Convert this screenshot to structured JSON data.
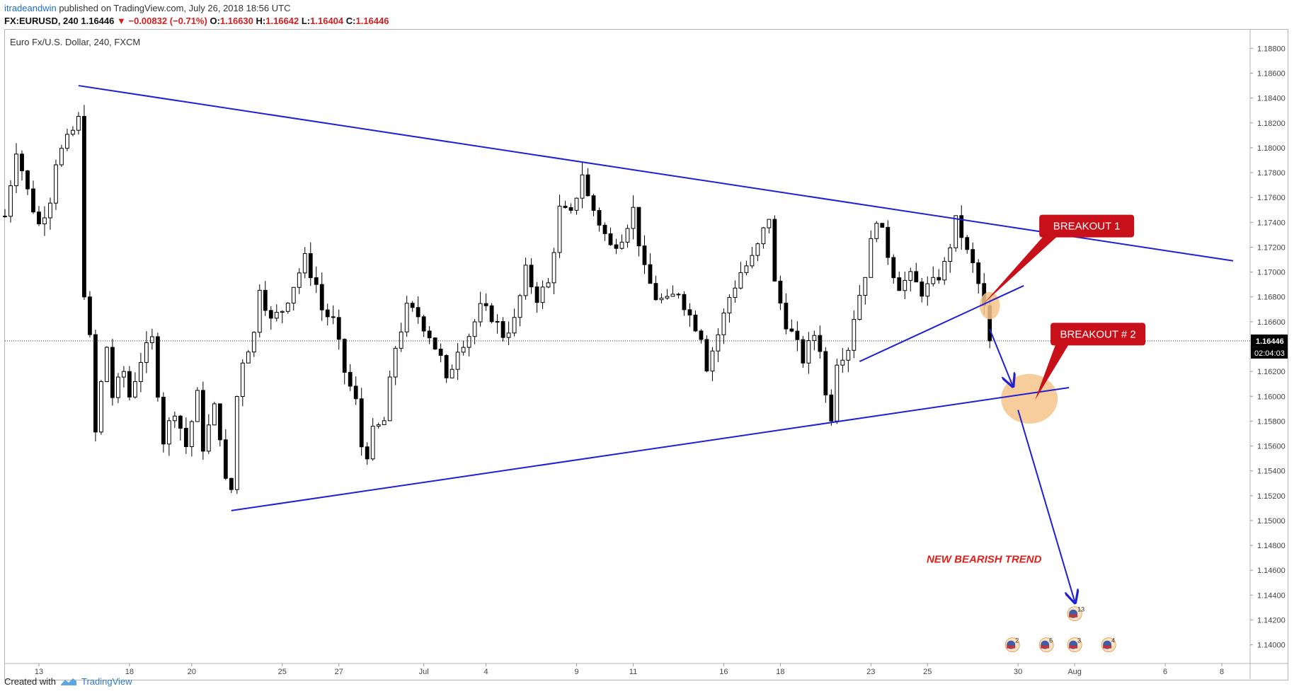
{
  "header": {
    "author": "itradeandwin",
    "published_text": " published on TradingView.com, July 26, 2018 18:56 UTC"
  },
  "quote": {
    "symbol": "FX:EURUSD, 240",
    "last": "1.16446",
    "change": "−0.00832 (−0.71%)",
    "o_label": "O:",
    "o": "1.16630",
    "h_label": "H:",
    "h": "1.16642",
    "l_label": "L:",
    "l": "1.16404",
    "c_label": "C:",
    "c": "1.16446"
  },
  "footer": {
    "created_with": "Created with",
    "brand": "TradingView"
  },
  "colors": {
    "trendline": "#1f1fd6",
    "callout": "#c8101a",
    "highlight": "#f6c48a",
    "candle_up": "#ffffff",
    "candle_down": "#000000",
    "annotation_text": "#e0201a"
  },
  "chart_data": {
    "type": "candlestick",
    "title": "Euro Fx/U.S. Dollar, 240, FXCM",
    "y_axis": {
      "position": "right",
      "ylim": [
        1.1385,
        1.1895
      ],
      "ticks": [
        "1.18800",
        "1.18600",
        "1.18400",
        "1.18200",
        "1.18000",
        "1.17800",
        "1.17600",
        "1.17400",
        "1.17200",
        "1.17000",
        "1.16800",
        "1.16600",
        "1.16400",
        "1.16200",
        "1.16000",
        "1.15800",
        "1.15600",
        "1.15400",
        "1.15200",
        "1.15000",
        "1.14800",
        "1.14600",
        "1.14400",
        "1.14200",
        "1.14000"
      ],
      "last_price_label": "1.16446",
      "countdown_label": "02:04:03"
    },
    "x_axis": {
      "xlim": [
        0,
        220
      ],
      "ticks": [
        {
          "label": "13",
          "x": 6
        },
        {
          "label": "18",
          "x": 22
        },
        {
          "label": "20",
          "x": 33
        },
        {
          "label": "25",
          "x": 49
        },
        {
          "label": "27",
          "x": 59
        },
        {
          "label": "Jul",
          "x": 74
        },
        {
          "label": "4",
          "x": 85
        },
        {
          "label": "9",
          "x": 101
        },
        {
          "label": "11",
          "x": 111
        },
        {
          "label": "16",
          "x": 127
        },
        {
          "label": "18",
          "x": 137
        },
        {
          "label": "23",
          "x": 153
        },
        {
          "label": "25",
          "x": 163
        },
        {
          "label": "30",
          "x": 179
        },
        {
          "label": "Aug",
          "x": 189
        },
        {
          "label": "6",
          "x": 205
        },
        {
          "label": "8",
          "x": 215
        }
      ]
    },
    "last_price": 1.16446,
    "price_path": [
      [
        0,
        1.1745
      ],
      [
        2,
        1.18
      ],
      [
        4,
        1.1765
      ],
      [
        6,
        1.1738
      ],
      [
        8,
        1.176
      ],
      [
        9,
        1.179
      ],
      [
        11,
        1.1805
      ],
      [
        13,
        1.1822
      ],
      [
        14,
        1.1685
      ],
      [
        15,
        1.1645
      ],
      [
        16,
        1.157
      ],
      [
        17,
        1.161
      ],
      [
        18,
        1.164
      ],
      [
        19,
        1.16
      ],
      [
        21,
        1.162
      ],
      [
        22,
        1.16
      ],
      [
        24,
        1.163
      ],
      [
        26,
        1.1645
      ],
      [
        28,
        1.1565
      ],
      [
        30,
        1.159
      ],
      [
        32,
        1.156
      ],
      [
        34,
        1.16
      ],
      [
        35,
        1.156
      ],
      [
        37,
        1.159
      ],
      [
        38,
        1.157
      ],
      [
        39,
        1.153
      ],
      [
        40,
        1.1525
      ],
      [
        41,
        1.16
      ],
      [
        42,
        1.163
      ],
      [
        44,
        1.165
      ],
      [
        45,
        1.169
      ],
      [
        47,
        1.166
      ],
      [
        49,
        1.167
      ],
      [
        51,
        1.169
      ],
      [
        53,
        1.171
      ],
      [
        54,
        1.17
      ],
      [
        55,
        1.169
      ],
      [
        56,
        1.167
      ],
      [
        58,
        1.166
      ],
      [
        60,
        1.162
      ],
      [
        62,
        1.1595
      ],
      [
        63,
        1.156
      ],
      [
        64,
        1.1555
      ],
      [
        65,
        1.157
      ],
      [
        67,
        1.158
      ],
      [
        69,
        1.164
      ],
      [
        71,
        1.167
      ],
      [
        73,
        1.1665
      ],
      [
        75,
        1.165
      ],
      [
        77,
        1.163
      ],
      [
        78,
        1.161
      ],
      [
        80,
        1.164
      ],
      [
        82,
        1.165
      ],
      [
        84,
        1.167
      ],
      [
        86,
        1.1665
      ],
      [
        88,
        1.165
      ],
      [
        90,
        1.166
      ],
      [
        92,
        1.17
      ],
      [
        94,
        1.168
      ],
      [
        96,
        1.169
      ],
      [
        98,
        1.175
      ],
      [
        100,
        1.1745
      ],
      [
        102,
        1.178
      ],
      [
        103,
        1.176
      ],
      [
        105,
        1.174
      ],
      [
        107,
        1.172
      ],
      [
        109,
        1.173
      ],
      [
        111,
        1.175
      ],
      [
        113,
        1.17
      ],
      [
        115,
        1.168
      ],
      [
        117,
        1.1675
      ],
      [
        119,
        1.1685
      ],
      [
        121,
        1.1665
      ],
      [
        123,
        1.165
      ],
      [
        124,
        1.1625
      ],
      [
        126,
        1.165
      ],
      [
        128,
        1.168
      ],
      [
        130,
        1.17
      ],
      [
        132,
        1.171
      ],
      [
        133,
        1.172
      ],
      [
        135,
        1.1745
      ],
      [
        136,
        1.169
      ],
      [
        138,
        1.166
      ],
      [
        140,
        1.164
      ],
      [
        141,
        1.163
      ],
      [
        143,
        1.165
      ],
      [
        144,
        1.164
      ],
      [
        145,
        1.16
      ],
      [
        146,
        1.1585
      ],
      [
        147,
        1.163
      ],
      [
        149,
        1.164
      ],
      [
        150,
        1.1665
      ],
      [
        152,
        1.17
      ],
      [
        154,
        1.1745
      ],
      [
        155,
        1.173
      ],
      [
        157,
        1.17
      ],
      [
        158,
        1.169
      ],
      [
        160,
        1.1695
      ],
      [
        162,
        1.1685
      ],
      [
        164,
        1.169
      ],
      [
        166,
        1.1705
      ],
      [
        168,
        1.174
      ],
      [
        169,
        1.173
      ],
      [
        170,
        1.1715
      ],
      [
        171,
        1.1705
      ],
      [
        172,
        1.169
      ],
      [
        173,
        1.167
      ],
      [
        174,
        1.16446
      ]
    ],
    "trendlines": [
      {
        "name": "upper",
        "x1": 13,
        "y1": 1.185,
        "x2": 217,
        "y2": 1.1709
      },
      {
        "name": "lower",
        "x1": 40,
        "y1": 1.1508,
        "x2": 188,
        "y2": 1.1607
      },
      {
        "name": "minor",
        "x1": 151,
        "y1": 1.1628,
        "x2": 180,
        "y2": 1.1689
      }
    ],
    "arrows": [
      {
        "x1": 174,
        "y1": 1.1654,
        "x2": 178,
        "y2": 1.1609
      },
      {
        "x1": 179,
        "y1": 1.1589,
        "x2": 189,
        "y2": 1.1435
      }
    ],
    "annotations": [
      {
        "text": "BREAKOUT 1",
        "kind": "callout",
        "x": 191,
        "y": 1.1737,
        "pointer_x": 173,
        "pointer_y": 1.1675
      },
      {
        "text": "BREAKOUT # 2",
        "kind": "callout",
        "x": 193,
        "y": 1.165,
        "pointer_x": 182,
        "pointer_y": 1.1597
      },
      {
        "text": "NEW BEARISH TREND",
        "kind": "label",
        "x": 173,
        "y": 1.1466
      }
    ],
    "highlights": [
      {
        "x": 174,
        "y": 1.1673,
        "rx": 1.8,
        "ry": 0.0011
      },
      {
        "x": 181,
        "y": 1.1598,
        "rx": 5.0,
        "ry": 0.002
      }
    ],
    "events": [
      {
        "label": "2",
        "x": 178,
        "y": 1.14
      },
      {
        "label": "6",
        "x": 184,
        "y": 1.14
      },
      {
        "label": "13",
        "x": 189,
        "y": 1.1425
      },
      {
        "label": "3",
        "x": 189,
        "y": 1.14
      },
      {
        "label": "4",
        "x": 195,
        "y": 1.14
      }
    ]
  }
}
